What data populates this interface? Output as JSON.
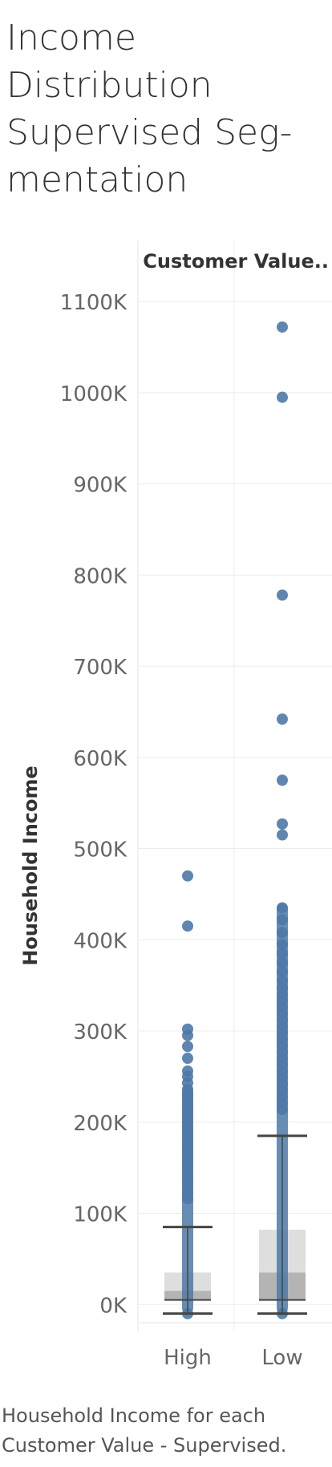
{
  "page": {
    "title": "Income Distribution Supervised Seg-mentation",
    "title_lines": [
      "Income",
      "Distribution",
      "Supervised Seg-",
      "mentation"
    ],
    "caption_lines": [
      "Household Income for each",
      "Customer Value - Supervised."
    ]
  },
  "chart_data": {
    "type": "scatter",
    "subtype": "box-plot",
    "title": "Income Distribution Supervised Seg-mentation",
    "column_header": "Customer Value..",
    "ylabel": "Household Income",
    "xlabel": "",
    "categories": [
      "High",
      "Low"
    ],
    "ylim": [
      -20000,
      1130000
    ],
    "yticks": [
      0,
      100000,
      200000,
      300000,
      400000,
      500000,
      600000,
      700000,
      800000,
      900000,
      1000000,
      1100000
    ],
    "ytick_labels": [
      "0K",
      "100K",
      "200K",
      "300K",
      "400K",
      "500K",
      "600K",
      "700K",
      "800K",
      "900K",
      "1000K",
      "1100K"
    ],
    "grid": true,
    "colors": {
      "points": "#4e79a7",
      "box_upper": "#dedede",
      "box_lower": "#b4b4b4",
      "whisker": "#444444",
      "grid": "#ececec",
      "tick_text": "#666666"
    },
    "series": [
      {
        "category": "High",
        "box": {
          "lower_whisker": -10000,
          "q1": 5000,
          "median": 15000,
          "q3": 35000,
          "upper_whisker": 85000
        },
        "dense_range": [
          -10000,
          240000
        ],
        "points": [
          -10000,
          470000,
          415000,
          302000,
          295000,
          283000,
          270000,
          256000,
          250000,
          243000,
          236000,
          230000,
          224000,
          218000,
          212000,
          206000,
          200000,
          194000,
          188000,
          182000,
          176000,
          170000,
          164000,
          158000,
          152000,
          146000,
          140000,
          134000,
          128000,
          122000,
          116000
        ]
      },
      {
        "category": "Low",
        "box": {
          "lower_whisker": -10000,
          "q1": 5000,
          "median": 35000,
          "q3": 82000,
          "upper_whisker": 185000
        },
        "dense_range": [
          -10000,
          440000
        ],
        "points": [
          -10000,
          1072000,
          995000,
          778000,
          642000,
          575000,
          527000,
          515000,
          435000,
          422000,
          408000,
          395000,
          385000,
          375000,
          365000,
          355000,
          347000,
          340000,
          333000,
          326000,
          319000,
          312000,
          305000,
          298000,
          291000,
          284000,
          277000,
          270000,
          263000,
          256000,
          249000,
          242000,
          235000,
          228000,
          221000,
          214000
        ]
      }
    ]
  }
}
